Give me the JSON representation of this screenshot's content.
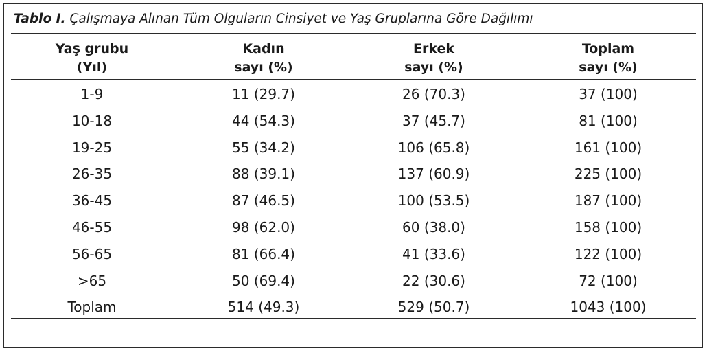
{
  "caption": {
    "label": "Tablo I.",
    "text": " Çalışmaya Alınan Tüm Olguların Cinsiyet ve Yaş Gruplarına Göre Dağılımı"
  },
  "headers": [
    {
      "line1": "Yaş grubu",
      "line2": "(Yıl)"
    },
    {
      "line1": "Kadın",
      "line2": "sayı (%)"
    },
    {
      "line1": "Erkek",
      "line2": "sayı (%)"
    },
    {
      "line1": "Toplam",
      "line2": "sayı (%)"
    }
  ],
  "rows": [
    [
      "1-9",
      "11 (29.7)",
      "26 (70.3)",
      "37 (100)"
    ],
    [
      "10-18",
      "44 (54.3)",
      "37 (45.7)",
      "81 (100)"
    ],
    [
      "19-25",
      "55 (34.2)",
      "106 (65.8)",
      "161 (100)"
    ],
    [
      "26-35",
      "88 (39.1)",
      "137 (60.9)",
      "225 (100)"
    ],
    [
      "36-45",
      "87 (46.5)",
      "100 (53.5)",
      "187 (100)"
    ],
    [
      "46-55",
      "98 (62.0)",
      "60 (38.0)",
      "158 (100)"
    ],
    [
      "56-65",
      "81 (66.4)",
      "41 (33.6)",
      "122 (100)"
    ],
    [
      ">65",
      "50 (69.4)",
      "22 (30.6)",
      "72 (100)"
    ],
    [
      "Toplam",
      "514 (49.3)",
      "529 (50.7)",
      "1043 (100)"
    ]
  ]
}
